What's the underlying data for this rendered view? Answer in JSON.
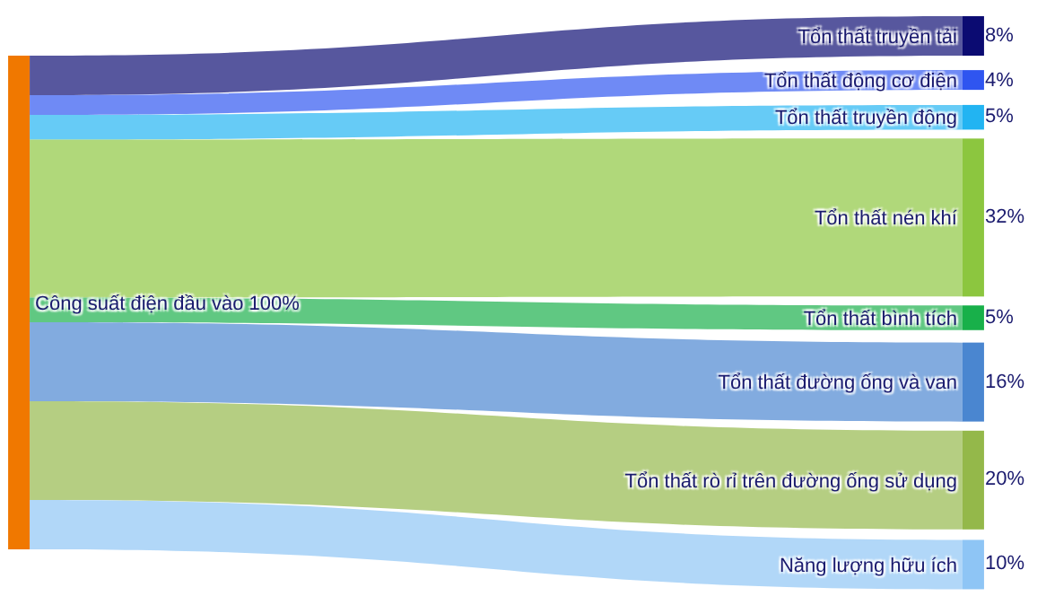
{
  "chart_data": {
    "type": "other",
    "annotations": [
      "Công suất điện đầu vào 100%"
    ],
    "categories": [
      "Tổn thất truyền tải",
      "Tổn thất động cơ điện",
      "Tổn thất truyền động",
      "Tổn thất nén khí",
      "Tổn thất bình tích",
      "Tổn thất đường ống và van",
      "Tổn thất rò rỉ trên đường ống sử dụng",
      "Năng lượng hữu ích"
    ],
    "values": [
      8,
      4,
      5,
      32,
      5,
      16,
      20,
      10
    ],
    "value_labels": [
      "8%",
      "4%",
      "5%",
      "32%",
      "5%",
      "16%",
      "20%",
      "10%"
    ],
    "colors": [
      "#0b0b72",
      "#2f55f0",
      "#22b4f2",
      "#8cc63f",
      "#18b04a",
      "#4a86d0",
      "#94b84a",
      "#8ec5f5"
    ]
  }
}
